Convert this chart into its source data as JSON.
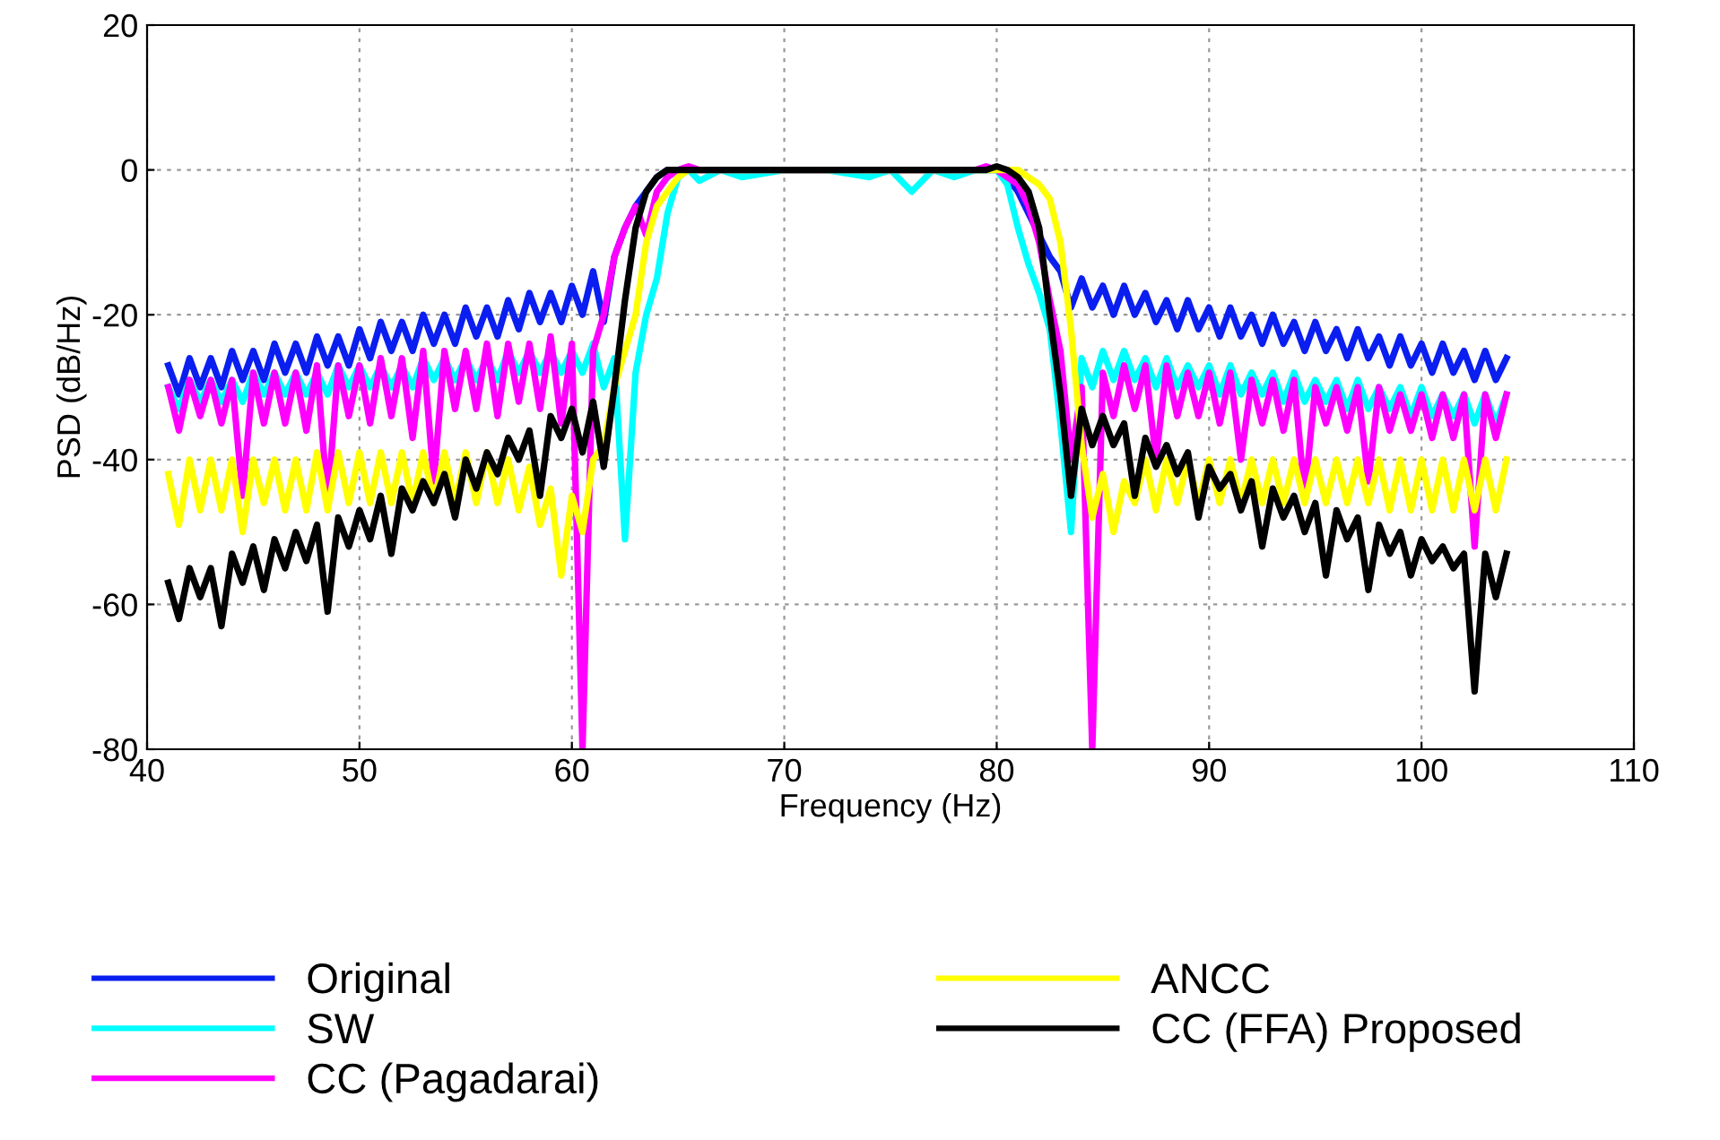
{
  "chart_data": {
    "type": "line",
    "xlabel": "Frequency (Hz)",
    "ylabel": "PSD (dB/Hz)",
    "x": [
      41,
      41.5,
      42,
      42.5,
      43,
      43.5,
      44,
      44.5,
      45,
      45.5,
      46,
      46.5,
      47,
      47.5,
      48,
      48.5,
      49,
      49.5,
      50,
      50.5,
      51,
      51.5,
      52,
      52.5,
      53,
      53.5,
      54,
      54.5,
      55,
      55.5,
      56,
      56.5,
      57,
      57.5,
      58,
      58.5,
      59,
      59.5,
      60,
      60.5,
      61,
      61.5,
      62,
      62.5,
      63,
      63.5,
      64,
      64.5,
      65,
      65.5,
      66,
      67,
      68,
      70,
      72,
      74,
      75,
      76,
      77,
      78,
      79,
      79.5,
      80,
      80.5,
      81,
      81.5,
      82,
      82.5,
      83,
      83.5,
      84,
      84.5,
      85,
      85.5,
      86,
      86.5,
      87,
      87.5,
      88,
      88.5,
      89,
      89.5,
      90,
      90.5,
      91,
      91.5,
      92,
      92.5,
      93,
      93.5,
      94,
      94.5,
      95,
      95.5,
      96,
      96.5,
      97,
      97.5,
      98,
      98.5,
      99,
      99.5,
      100,
      100.5,
      101,
      101.5,
      102,
      102.5,
      103,
      103.5,
      104
    ],
    "xlim": [
      40,
      110
    ],
    "xticks": [
      40,
      50,
      60,
      70,
      80,
      90,
      100,
      110
    ],
    "ylim": [
      -80,
      20
    ],
    "yticks": [
      -80,
      -60,
      -40,
      -20,
      0,
      20
    ],
    "grid": true,
    "legend": "bottom",
    "line_style": "solid",
    "marker": "none",
    "series": [
      {
        "name": "Original",
        "color": "#0a1ef0",
        "values": [
          -27,
          -31,
          -26,
          -30,
          -26,
          -30,
          -25,
          -29,
          -25,
          -29,
          -24,
          -28,
          -24,
          -28,
          -23,
          -27,
          -23,
          -27,
          -22,
          -26,
          -21,
          -25,
          -21,
          -25,
          -20,
          -24,
          -20,
          -24,
          -19,
          -23,
          -19,
          -23,
          -18,
          -22,
          -17,
          -21,
          -17,
          -21,
          -16,
          -20,
          -14,
          -21,
          -12,
          -8,
          -5,
          -3,
          -1,
          0,
          0,
          0,
          0,
          0,
          0,
          0,
          0,
          0,
          0,
          0,
          0,
          0,
          0,
          0,
          0,
          -1,
          -3,
          -6,
          -9,
          -12,
          -14,
          -19,
          -15,
          -19,
          -16,
          -20,
          -16,
          -20,
          -17,
          -21,
          -18,
          -22,
          -18,
          -22,
          -19,
          -23,
          -19,
          -23,
          -20,
          -24,
          -20,
          -24,
          -21,
          -25,
          -21,
          -25,
          -22,
          -26,
          -22,
          -26,
          -23,
          -27,
          -23,
          -27,
          -24,
          -28,
          -24,
          -28,
          -25,
          -29,
          -25,
          -29,
          -26
        ]
      },
      {
        "name": "SW",
        "color": "#00ffff",
        "values": [
          -30,
          -33,
          -29,
          -32,
          -29,
          -32,
          -29,
          -32,
          -28,
          -31,
          -28,
          -31,
          -28,
          -31,
          -28,
          -31,
          -27,
          -30,
          -27,
          -30,
          -27,
          -30,
          -27,
          -30,
          -26,
          -29,
          -26,
          -29,
          -26,
          -29,
          -26,
          -29,
          -25,
          -28,
          -25,
          -28,
          -25,
          -28,
          -25,
          -28,
          -24,
          -30,
          -26,
          -51,
          -28,
          -20,
          -15,
          -6,
          -1,
          0,
          -1.5,
          0,
          -1,
          0,
          0,
          -1,
          0,
          -3,
          0,
          -1,
          0,
          0,
          0,
          -2,
          -8,
          -13,
          -17,
          -22,
          -35,
          -50,
          -26,
          -30,
          -25,
          -29,
          -25,
          -29,
          -26,
          -30,
          -26,
          -30,
          -27,
          -30,
          -27,
          -31,
          -27,
          -31,
          -28,
          -31,
          -28,
          -32,
          -28,
          -32,
          -29,
          -32,
          -29,
          -33,
          -29,
          -33,
          -30,
          -33,
          -30,
          -34,
          -30,
          -34,
          -31,
          -34,
          -31,
          -35,
          -31,
          -35,
          -31
        ]
      },
      {
        "name": "CC (Pagadarai)",
        "color": "#ff00ff",
        "values": [
          -30,
          -36,
          -29,
          -34,
          -29,
          -35,
          -29,
          -45,
          -28,
          -35,
          -28,
          -35,
          -28,
          -36,
          -27,
          -46,
          -27,
          -34,
          -27,
          -35,
          -26,
          -34,
          -26,
          -37,
          -25,
          -43,
          -25,
          -33,
          -25,
          -33,
          -24,
          -34,
          -24,
          -32,
          -24,
          -33,
          -23,
          -35,
          -24,
          -80,
          -25,
          -20,
          -12,
          -8,
          -5,
          -9,
          -3,
          -1,
          0,
          0.5,
          0,
          0,
          0,
          0,
          0,
          0,
          0,
          0,
          0,
          0,
          0,
          0.5,
          0,
          -1,
          -2,
          -5,
          -10,
          -18,
          -25,
          -40,
          -30,
          -80,
          -28,
          -34,
          -27,
          -33,
          -27,
          -40,
          -27,
          -34,
          -28,
          -34,
          -28,
          -35,
          -28,
          -40,
          -29,
          -35,
          -29,
          -36,
          -29,
          -45,
          -30,
          -35,
          -30,
          -36,
          -30,
          -43,
          -30,
          -36,
          -31,
          -36,
          -31,
          -37,
          -31,
          -37,
          -31,
          -52,
          -31,
          -37,
          -31
        ]
      },
      {
        "name": "ANCC",
        "color": "#ffff00",
        "values": [
          -42,
          -49,
          -40,
          -47,
          -40,
          -47,
          -40,
          -50,
          -40,
          -46,
          -40,
          -47,
          -40,
          -47,
          -39,
          -47,
          -39,
          -46,
          -39,
          -46,
          -39,
          -46,
          -39,
          -46,
          -39,
          -46,
          -39,
          -46,
          -39,
          -46,
          -39,
          -46,
          -40,
          -47,
          -41,
          -49,
          -44,
          -56,
          -45,
          -50,
          -40,
          -38,
          -30,
          -25,
          -20,
          -10,
          -5,
          -3,
          -1,
          0,
          0,
          0,
          0,
          0,
          0,
          0,
          0,
          0,
          0,
          0,
          0,
          0,
          0,
          0,
          0,
          -1,
          -2,
          -4,
          -10,
          -22,
          -38,
          -48,
          -42,
          -50,
          -43,
          -46,
          -40,
          -47,
          -40,
          -46,
          -40,
          -46,
          -40,
          -46,
          -40,
          -46,
          -40,
          -46,
          -40,
          -46,
          -40,
          -46,
          -40,
          -46,
          -40,
          -46,
          -40,
          -46,
          -40,
          -47,
          -40,
          -47,
          -40,
          -47,
          -40,
          -47,
          -40,
          -47,
          -40,
          -47,
          -40
        ]
      },
      {
        "name": "CC (FFA) Proposed",
        "color": "#000000",
        "values": [
          -57,
          -62,
          -55,
          -59,
          -55,
          -63,
          -53,
          -57,
          -52,
          -58,
          -51,
          -55,
          -50,
          -54,
          -49,
          -61,
          -48,
          -52,
          -47,
          -51,
          -45,
          -53,
          -44,
          -47,
          -43,
          -46,
          -42,
          -48,
          -40,
          -44,
          -39,
          -42,
          -37,
          -40,
          -36,
          -45,
          -34,
          -37,
          -33,
          -39,
          -32,
          -41,
          -30,
          -18,
          -8,
          -3,
          -1,
          0,
          0,
          0,
          0,
          0,
          0,
          0,
          0,
          0,
          0,
          0,
          0,
          0,
          0,
          0,
          0.5,
          0,
          -1,
          -3,
          -8,
          -20,
          -31,
          -45,
          -33,
          -38,
          -34,
          -38,
          -35,
          -45,
          -37,
          -41,
          -38,
          -42,
          -39,
          -48,
          -41,
          -44,
          -42,
          -47,
          -43,
          -52,
          -44,
          -48,
          -45,
          -50,
          -46,
          -56,
          -47,
          -51,
          -48,
          -58,
          -49,
          -53,
          -50,
          -56,
          -51,
          -54,
          -52,
          -55,
          -53,
          -72,
          -53,
          -59,
          -53
        ]
      }
    ]
  }
}
